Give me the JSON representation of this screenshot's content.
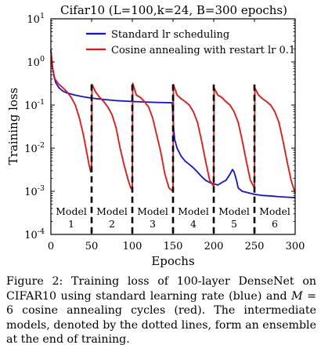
{
  "chart_data": {
    "type": "line",
    "title": "Cifar10 (L=100,k=24, B=300 epochs)",
    "xlabel": "Epochs",
    "ylabel": "Training loss",
    "xlim": [
      0,
      300
    ],
    "ylim": [
      0.0001,
      10
    ],
    "y_scale": "log",
    "x_ticks": [
      "0",
      "50",
      "100",
      "150",
      "200",
      "250",
      "300"
    ],
    "y_ticks": [
      {
        "value": 10,
        "base": "10",
        "exp": "1"
      },
      {
        "value": 1,
        "base": "10",
        "exp": "0"
      },
      {
        "value": 0.1,
        "base": "10",
        "exp": "-1"
      },
      {
        "value": 0.01,
        "base": "10",
        "exp": "-2"
      },
      {
        "value": 0.001,
        "base": "10",
        "exp": "-3"
      },
      {
        "value": 0.0001,
        "base": "10",
        "exp": "-4"
      }
    ],
    "grid": false,
    "legend_position": "top-center",
    "series": [
      {
        "name": "Standard lr scheduling",
        "color": "#1010ee",
        "points": [
          [
            0,
            1.9
          ],
          [
            1,
            1.2
          ],
          [
            2,
            0.75
          ],
          [
            4,
            0.45
          ],
          [
            6,
            0.33
          ],
          [
            10,
            0.25
          ],
          [
            15,
            0.21
          ],
          [
            20,
            0.19
          ],
          [
            30,
            0.17
          ],
          [
            40,
            0.155
          ],
          [
            50,
            0.145
          ],
          [
            60,
            0.138
          ],
          [
            70,
            0.132
          ],
          [
            80,
            0.127
          ],
          [
            90,
            0.124
          ],
          [
            100,
            0.121
          ],
          [
            110,
            0.119
          ],
          [
            120,
            0.117
          ],
          [
            130,
            0.115
          ],
          [
            140,
            0.114
          ],
          [
            149,
            0.113
          ],
          [
            150,
            0.05
          ],
          [
            151,
            0.025
          ],
          [
            152,
            0.016
          ],
          [
            155,
            0.01
          ],
          [
            160,
            0.0065
          ],
          [
            165,
            0.005
          ],
          [
            170,
            0.0042
          ],
          [
            175,
            0.0035
          ],
          [
            180,
            0.0028
          ],
          [
            185,
            0.0022
          ],
          [
            190,
            0.0018
          ],
          [
            195,
            0.0016
          ],
          [
            199,
            0.0015
          ],
          [
            200,
            0.0015
          ],
          [
            205,
            0.0014
          ],
          [
            210,
            0.0016
          ],
          [
            215,
            0.0018
          ],
          [
            220,
            0.0025
          ],
          [
            223,
            0.0032
          ],
          [
            225,
            0.0028
          ],
          [
            228,
            0.0018
          ],
          [
            230,
            0.0012
          ],
          [
            235,
            0.001
          ],
          [
            240,
            0.00095
          ],
          [
            250,
            0.00085
          ],
          [
            260,
            0.0008
          ],
          [
            270,
            0.00078
          ],
          [
            280,
            0.00075
          ],
          [
            290,
            0.00073
          ],
          [
            297,
            0.00072
          ],
          [
            300,
            0.00072
          ]
        ]
      },
      {
        "name": "Cosine annealing with restart lr 0.1",
        "color": "#ee1010",
        "points": [
          [
            0,
            1.9
          ],
          [
            2,
            0.7
          ],
          [
            5,
            0.4
          ],
          [
            10,
            0.3
          ],
          [
            15,
            0.25
          ],
          [
            20,
            0.2
          ],
          [
            25,
            0.15
          ],
          [
            30,
            0.1
          ],
          [
            35,
            0.05
          ],
          [
            40,
            0.02
          ],
          [
            44,
            0.008
          ],
          [
            47,
            0.004
          ],
          [
            49,
            0.0028
          ],
          [
            50,
            0.003
          ],
          [
            50.5,
            0.3
          ],
          [
            55,
            0.2
          ],
          [
            60,
            0.15
          ],
          [
            65,
            0.12
          ],
          [
            70,
            0.09
          ],
          [
            75,
            0.06
          ],
          [
            80,
            0.03
          ],
          [
            85,
            0.01
          ],
          [
            90,
            0.004
          ],
          [
            95,
            0.0018
          ],
          [
            98,
            0.0012
          ],
          [
            100,
            0.0011
          ],
          [
            100.5,
            0.32
          ],
          [
            105,
            0.17
          ],
          [
            110,
            0.15
          ],
          [
            115,
            0.12
          ],
          [
            120,
            0.09
          ],
          [
            125,
            0.05
          ],
          [
            130,
            0.02
          ],
          [
            135,
            0.008
          ],
          [
            140,
            0.0025
          ],
          [
            145,
            0.0012
          ],
          [
            150,
            0.001
          ],
          [
            150.5,
            0.3
          ],
          [
            155,
            0.17
          ],
          [
            160,
            0.14
          ],
          [
            165,
            0.12
          ],
          [
            170,
            0.1
          ],
          [
            175,
            0.07
          ],
          [
            180,
            0.04
          ],
          [
            185,
            0.015
          ],
          [
            190,
            0.005
          ],
          [
            195,
            0.0018
          ],
          [
            200,
            0.0013
          ],
          [
            200.5,
            0.25
          ],
          [
            205,
            0.17
          ],
          [
            210,
            0.15
          ],
          [
            215,
            0.12
          ],
          [
            220,
            0.1
          ],
          [
            225,
            0.07
          ],
          [
            230,
            0.04
          ],
          [
            235,
            0.015
          ],
          [
            240,
            0.005
          ],
          [
            245,
            0.0018
          ],
          [
            250,
            0.0012
          ],
          [
            250.5,
            0.25
          ],
          [
            255,
            0.17
          ],
          [
            260,
            0.14
          ],
          [
            265,
            0.12
          ],
          [
            270,
            0.1
          ],
          [
            275,
            0.07
          ],
          [
            280,
            0.04
          ],
          [
            285,
            0.015
          ],
          [
            290,
            0.005
          ],
          [
            295,
            0.0018
          ],
          [
            300,
            0.0009
          ]
        ]
      }
    ],
    "dividers": [
      50,
      100,
      150,
      200,
      250
    ],
    "model_labels": [
      {
        "line1": "Model",
        "line2": "1",
        "x": 25
      },
      {
        "line1": "Model",
        "line2": "2",
        "x": 75
      },
      {
        "line1": "Model",
        "line2": "3",
        "x": 125
      },
      {
        "line1": "Model",
        "line2": "4",
        "x": 175
      },
      {
        "line1": "Model",
        "line2": "5",
        "x": 225
      },
      {
        "line1": "Model",
        "line2": "6",
        "x": 275
      }
    ]
  },
  "caption": {
    "label": "Figure 2:",
    "text_before_math": " Training loss of 100-layer DenseNet on CIFAR10 using standard learning rate (blue) and ",
    "math_var": "M",
    "math_rest": " = 6",
    "text_after_math": " cosine annealing cycles (red). The intermediate models, denoted by the dotted lines, form an ensemble at the end of training."
  }
}
